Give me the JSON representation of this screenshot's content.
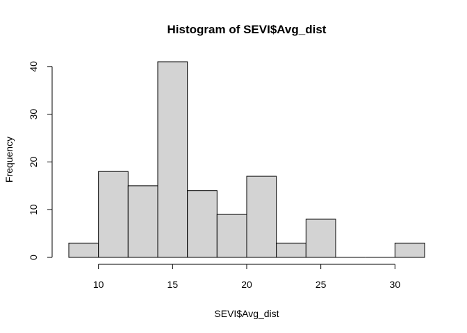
{
  "chart_data": {
    "type": "histogram",
    "title": "Histogram of SEVI$Avg_dist",
    "xlabel": "SEVI$Avg_dist",
    "ylabel": "Frequency",
    "bins": [
      {
        "x0": 8,
        "x1": 10,
        "count": 3
      },
      {
        "x0": 10,
        "x1": 12,
        "count": 18
      },
      {
        "x0": 12,
        "x1": 14,
        "count": 15
      },
      {
        "x0": 14,
        "x1": 16,
        "count": 41
      },
      {
        "x0": 16,
        "x1": 18,
        "count": 14
      },
      {
        "x0": 18,
        "x1": 20,
        "count": 9
      },
      {
        "x0": 20,
        "x1": 22,
        "count": 17
      },
      {
        "x0": 22,
        "x1": 24,
        "count": 3
      },
      {
        "x0": 24,
        "x1": 26,
        "count": 8
      },
      {
        "x0": 26,
        "x1": 28,
        "count": 0
      },
      {
        "x0": 28,
        "x1": 30,
        "count": 0
      },
      {
        "x0": 30,
        "x1": 32,
        "count": 3
      }
    ],
    "xlim": [
      8,
      32
    ],
    "ylim": [
      0,
      41
    ],
    "x_ticks": [
      10,
      15,
      20,
      25,
      30
    ],
    "y_ticks": [
      0,
      10,
      20,
      30,
      40
    ],
    "bar_fill": "#d3d3d3",
    "bar_stroke": "#000000",
    "grid": false,
    "legend": "none"
  }
}
